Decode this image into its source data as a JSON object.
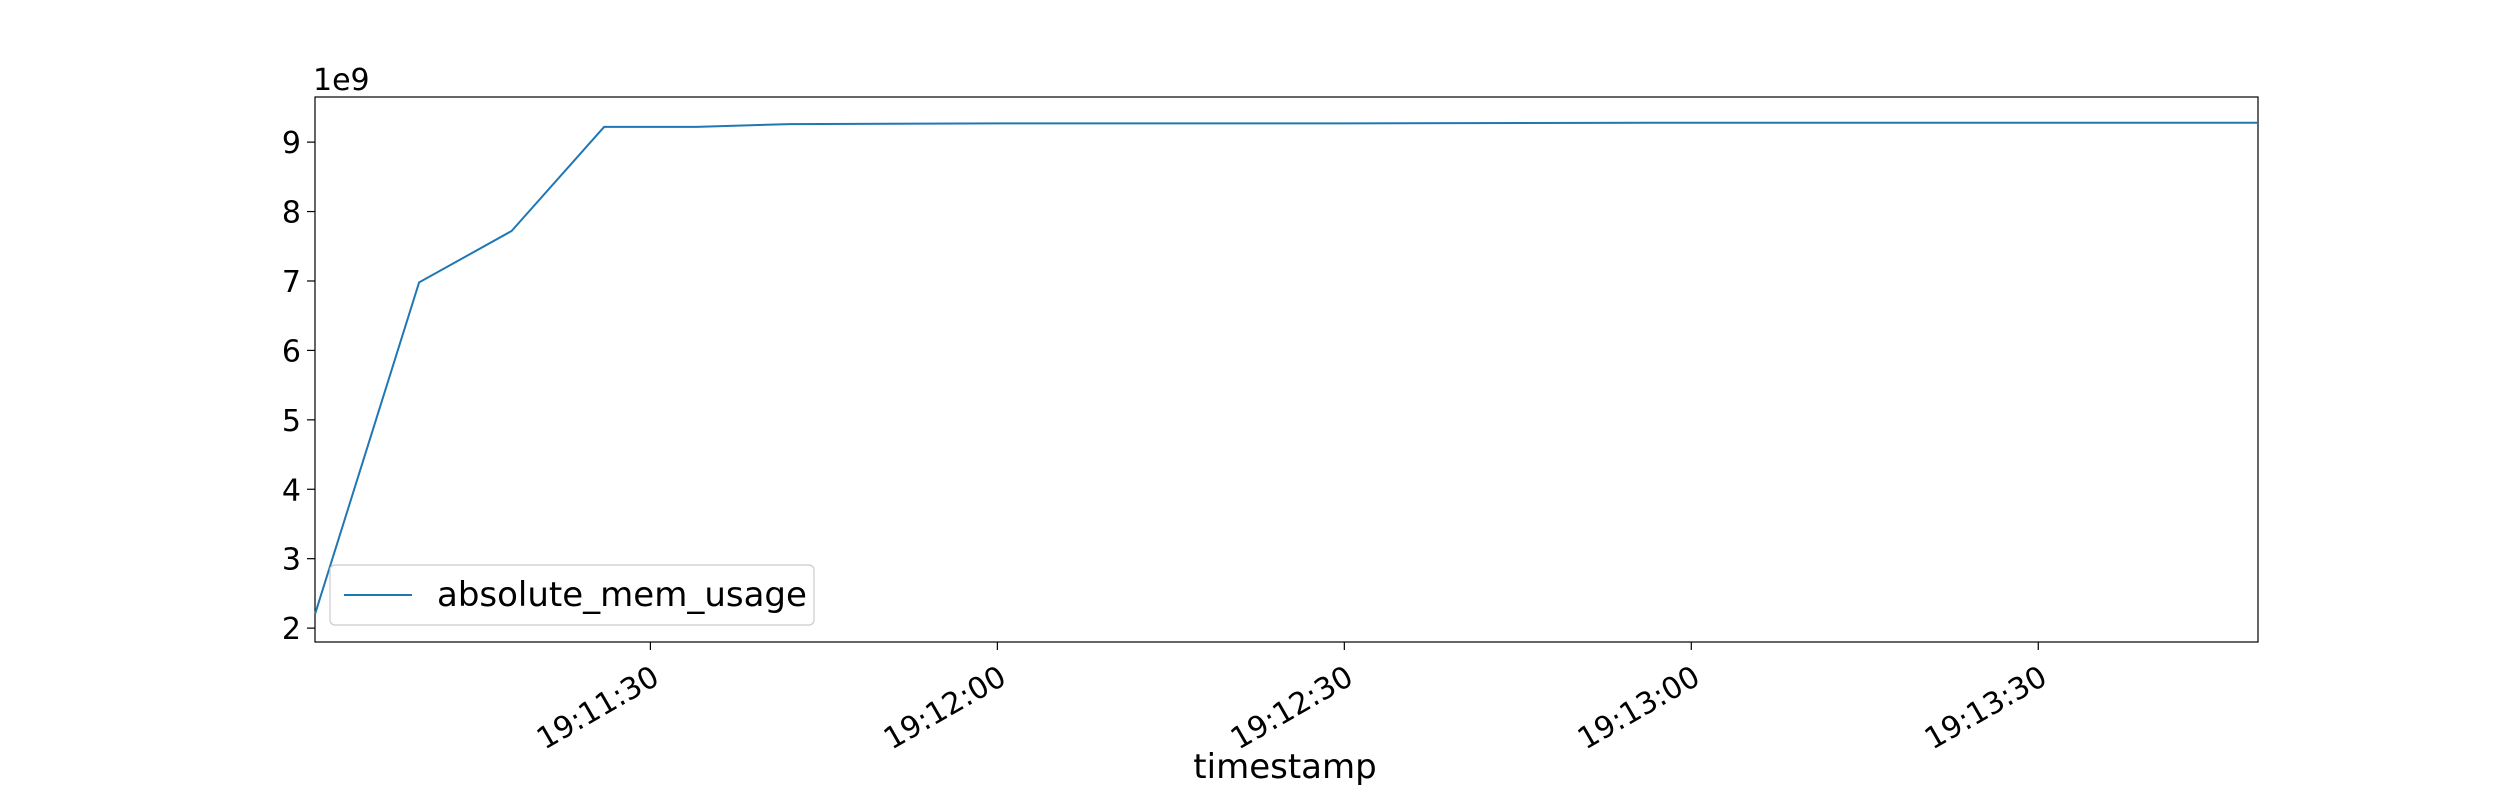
{
  "chart_data": {
    "type": "line",
    "xlabel": "timestamp",
    "y_offset_label": "1e9",
    "x_tick_labels": [
      "19:11:30",
      "19:12:00",
      "19:12:30",
      "19:13:00",
      "19:13:30"
    ],
    "y_tick_labels": [
      "2",
      "3",
      "4",
      "5",
      "6",
      "7",
      "8",
      "9"
    ],
    "xlim": [
      "19:11:01",
      "19:13:49"
    ],
    "ylim": [
      1.8,
      9.65
    ],
    "grid": false,
    "legend_position": "lower-left",
    "series": [
      {
        "name": "absolute_mem_usage",
        "color": "#1f77b4",
        "x": [
          "19:11:01",
          "19:11:10",
          "19:11:18",
          "19:11:26",
          "19:11:34",
          "19:11:42",
          "19:12:00",
          "19:12:30",
          "19:13:00",
          "19:13:30",
          "19:13:49"
        ],
        "y": [
          2.2,
          6.98,
          7.72,
          9.22,
          9.22,
          9.26,
          9.27,
          9.27,
          9.28,
          9.28,
          9.28
        ]
      }
    ]
  }
}
